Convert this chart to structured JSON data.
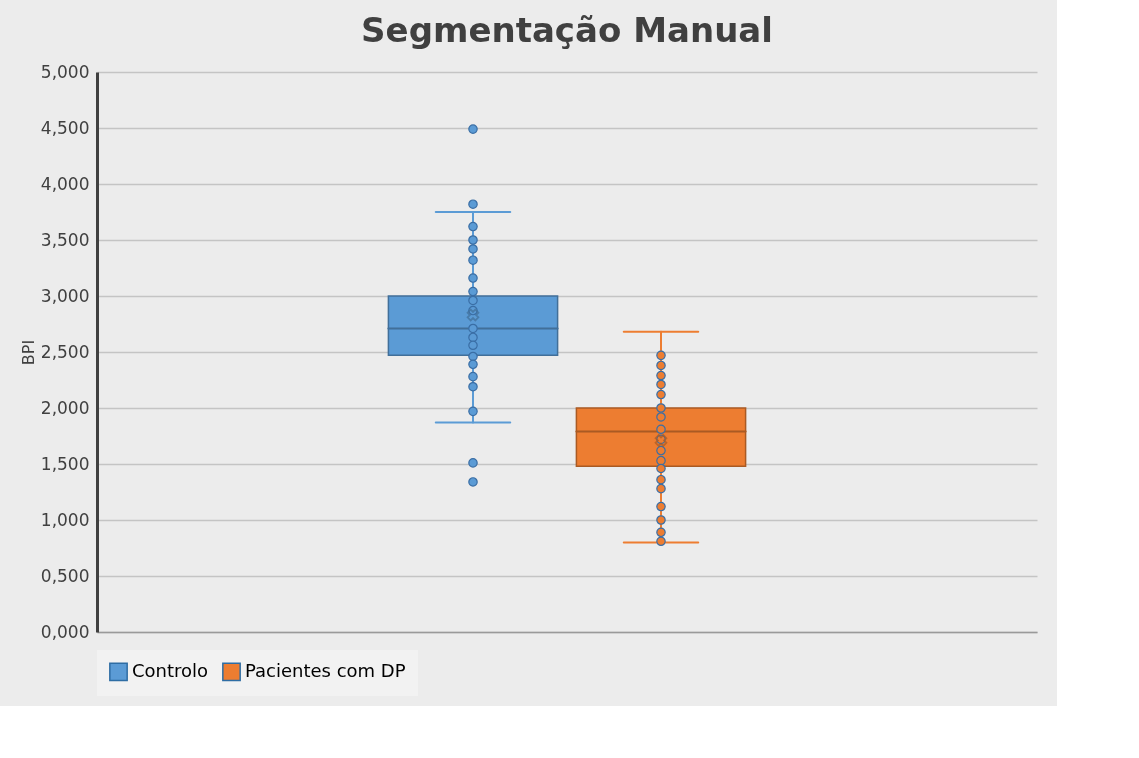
{
  "chart_data": {
    "type": "box",
    "title": "Segmentação Manual",
    "ylabel": "BPI",
    "categories": [
      null
    ],
    "ylim": [
      0,
      5
    ],
    "yticks": [
      {
        "value": 0,
        "label": "0,000"
      },
      {
        "value": 0.5,
        "label": "0,500"
      },
      {
        "value": 1,
        "label": "1,000"
      },
      {
        "value": 1.5,
        "label": "1,500"
      },
      {
        "value": 2,
        "label": "2,000"
      },
      {
        "value": 2.5,
        "label": "2,500"
      },
      {
        "value": 3,
        "label": "3,000"
      },
      {
        "value": 3.5,
        "label": "3,500"
      },
      {
        "value": 4,
        "label": "4,000"
      },
      {
        "value": 4.5,
        "label": "4,500"
      },
      {
        "value": 5,
        "label": "5,000"
      }
    ],
    "grid": "y",
    "legend": "bottom",
    "tick_labels": "y",
    "marker": "circle",
    "series": [
      {
        "name": "Controlo",
        "color": "#5b9bd5",
        "boxes": [
          {
            "low": 1.87,
            "q1": 2.47,
            "median": 2.71,
            "q3": 3.0,
            "high": 3.75,
            "mean": 2.83,
            "outliers": [
              4.49,
              3.82,
              1.51,
              1.34
            ]
          }
        ]
      },
      {
        "name": "Pacientes com DP",
        "color": "#ed7d31",
        "boxes": [
          {
            "low": 0.8,
            "q1": 1.48,
            "median": 1.79,
            "q3": 2.0,
            "high": 2.68,
            "mean": 1.71
          }
        ]
      },
      {
        "type": "scatter",
        "color": "#5b9bd5",
        "x": [
          null,
          null,
          null,
          null,
          null,
          null,
          null,
          null,
          null,
          null,
          null,
          null,
          null,
          null,
          null,
          null
        ],
        "values": [
          3.62,
          3.5,
          3.42,
          3.32,
          3.16,
          3.04,
          2.96,
          2.87,
          2.71,
          2.63,
          2.56,
          2.46,
          2.39,
          2.28,
          2.19,
          1.97
        ]
      },
      {
        "type": "scatter",
        "color": "#ed7d31",
        "x": [
          null,
          null,
          null,
          null,
          null,
          null,
          null,
          null,
          null,
          null,
          null,
          null,
          null,
          null,
          null,
          null,
          null,
          null
        ],
        "values": [
          2.47,
          2.38,
          2.29,
          2.21,
          2.12,
          2.0,
          1.92,
          1.81,
          1.72,
          1.62,
          1.53,
          1.46,
          1.36,
          1.28,
          1.12,
          1.0,
          0.89,
          0.81
        ]
      }
    ]
  }
}
